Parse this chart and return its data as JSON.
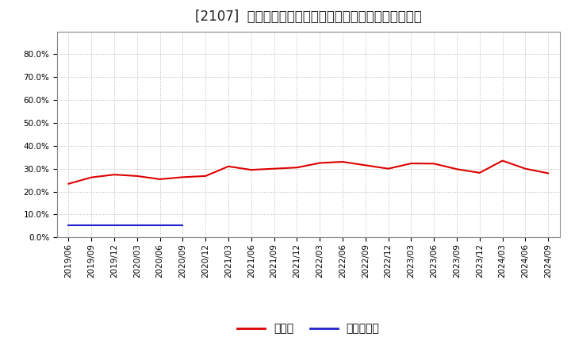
{
  "title": "[2107]  現預金、有利子負債の総資産に対する比率の推移",
  "x_labels": [
    "2019/06",
    "2019/09",
    "2019/12",
    "2020/03",
    "2020/06",
    "2020/09",
    "2020/12",
    "2021/03",
    "2021/06",
    "2021/09",
    "2021/12",
    "2022/03",
    "2022/06",
    "2022/09",
    "2022/12",
    "2023/03",
    "2023/06",
    "2023/09",
    "2023/12",
    "2024/03",
    "2024/06",
    "2024/09"
  ],
  "cash_values": [
    0.234,
    0.262,
    0.274,
    0.268,
    0.254,
    0.263,
    0.268,
    0.31,
    0.295,
    0.3,
    0.305,
    0.325,
    0.33,
    0.315,
    0.3,
    0.323,
    0.322,
    0.298,
    0.282,
    0.335,
    0.3,
    0.28
  ],
  "debt_values": [
    0.052,
    0.052,
    0.052,
    0.052,
    0.052,
    0.052,
    null,
    null,
    null,
    null,
    null,
    null,
    null,
    null,
    null,
    null,
    null,
    null,
    null,
    null,
    null,
    null
  ],
  "cash_color": "#dd0000",
  "debt_color": "#2222cc",
  "background_color": "#ffffff",
  "grid_color": "#999999",
  "legend_cash": "現預金",
  "legend_debt": "有利子負債",
  "ylim_min": 0.0,
  "ylim_max": 0.9,
  "yticks": [
    0.0,
    0.1,
    0.2,
    0.3,
    0.4,
    0.5,
    0.6,
    0.7,
    0.8
  ],
  "title_fontsize": 12,
  "tick_fontsize": 7.5,
  "legend_fontsize": 10,
  "line_width": 1.5
}
